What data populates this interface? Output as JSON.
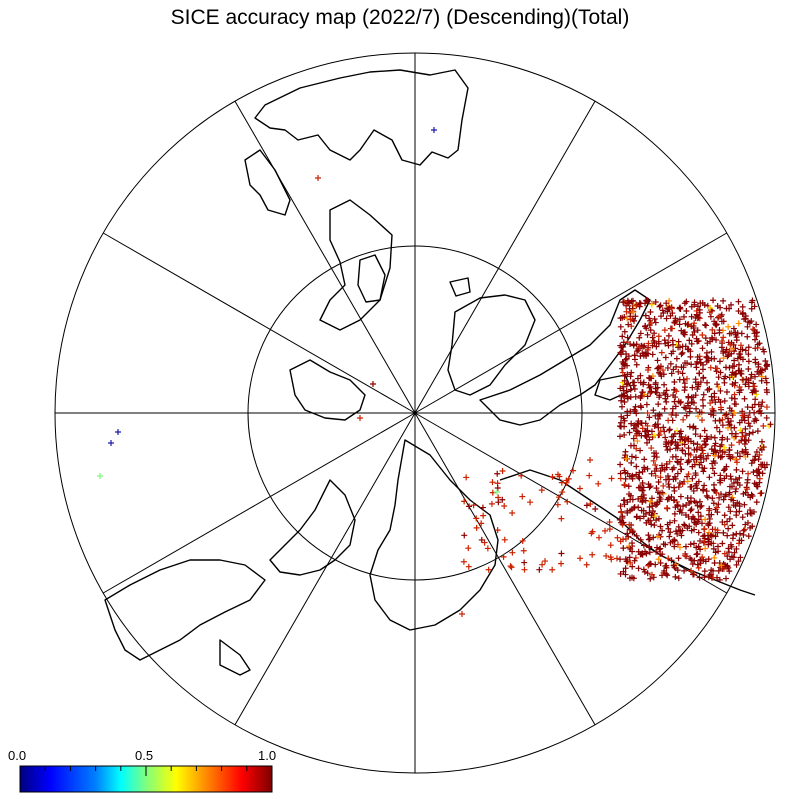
{
  "title": "SICE accuracy map (2022/7) (Descending)(Total)",
  "colorbar": {
    "min_label": "0.0",
    "mid_label": "0.5",
    "max_label": "1.0",
    "stops": [
      "#00007f",
      "#0000ff",
      "#007fff",
      "#00ffff",
      "#7fff7f",
      "#ffff00",
      "#ff7f00",
      "#ff0000",
      "#7f0000"
    ]
  },
  "colors": {
    "high_accuracy": "#8b0000",
    "mid_high": "#cc2200",
    "orange": "#ff8c00",
    "yellow": "#ffd700",
    "green": "#7cfc7c",
    "blue": "#1a1aa6",
    "coastline": "#000000"
  },
  "map": {
    "projection": "north polar stereographic",
    "meridian_spokes": 12,
    "inner_circle": true
  }
}
